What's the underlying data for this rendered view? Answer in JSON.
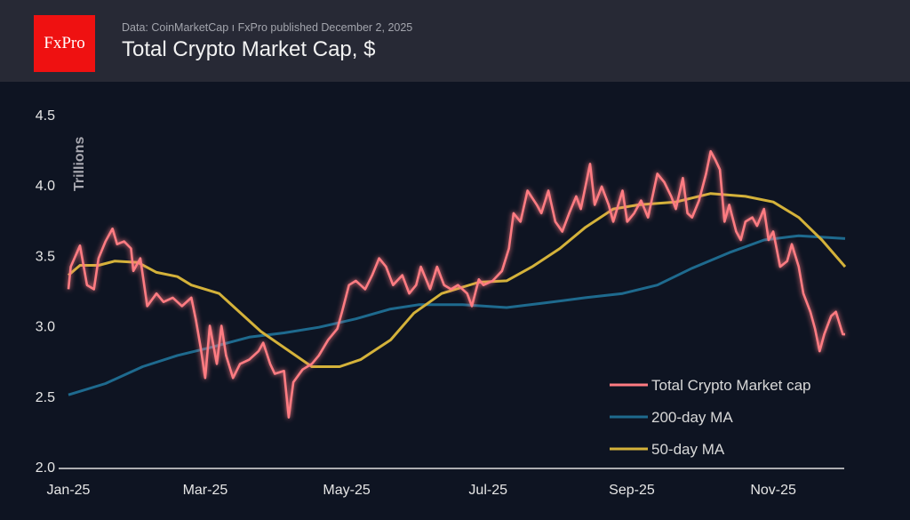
{
  "header": {
    "logo_text": "FxPro",
    "source": "Data: CoinMarketCap  ı  FxPro published December 2, 2025",
    "title": "Total Crypto Market Cap, $"
  },
  "chart_data": {
    "type": "line",
    "title": "Total Crypto Market Cap, $",
    "ylabel": "Trillions",
    "xlabel": "",
    "ylim": [
      2.0,
      4.5
    ],
    "xlim": [
      "2025-01-01",
      "2025-12-02"
    ],
    "yticks": [
      "2.0",
      "2.5",
      "3.0",
      "3.5",
      "4.0",
      "4.5"
    ],
    "xticks": [
      {
        "date": "2025-01-01",
        "label": "Jan-25"
      },
      {
        "date": "2025-03-01",
        "label": "Mar-25"
      },
      {
        "date": "2025-05-01",
        "label": "May-25"
      },
      {
        "date": "2025-07-01",
        "label": "Jul-25"
      },
      {
        "date": "2025-09-01",
        "label": "Sep-25"
      },
      {
        "date": "2025-11-01",
        "label": "Nov-25"
      }
    ],
    "grid": false,
    "legend_position": "bottom-right",
    "series": [
      {
        "name": "Total Crypto Market cap",
        "color": "#ff7b82",
        "points": [
          [
            "2025-01-01",
            3.26
          ],
          [
            "2025-01-02",
            3.42
          ],
          [
            "2025-01-06",
            3.57
          ],
          [
            "2025-01-09",
            3.29
          ],
          [
            "2025-01-12",
            3.26
          ],
          [
            "2025-01-14",
            3.48
          ],
          [
            "2025-01-17",
            3.6
          ],
          [
            "2025-01-20",
            3.69
          ],
          [
            "2025-01-22",
            3.58
          ],
          [
            "2025-01-25",
            3.6
          ],
          [
            "2025-01-28",
            3.55
          ],
          [
            "2025-01-29",
            3.39
          ],
          [
            "2025-02-01",
            3.48
          ],
          [
            "2025-02-04",
            3.14
          ],
          [
            "2025-02-08",
            3.23
          ],
          [
            "2025-02-11",
            3.17
          ],
          [
            "2025-02-15",
            3.2
          ],
          [
            "2025-02-19",
            3.14
          ],
          [
            "2025-02-23",
            3.2
          ],
          [
            "2025-02-25",
            3.04
          ],
          [
            "2025-02-27",
            2.85
          ],
          [
            "2025-03-01",
            2.63
          ],
          [
            "2025-03-03",
            3.0
          ],
          [
            "2025-03-06",
            2.73
          ],
          [
            "2025-03-08",
            3.0
          ],
          [
            "2025-03-10",
            2.79
          ],
          [
            "2025-03-13",
            2.63
          ],
          [
            "2025-03-16",
            2.73
          ],
          [
            "2025-03-20",
            2.76
          ],
          [
            "2025-03-24",
            2.82
          ],
          [
            "2025-03-26",
            2.88
          ],
          [
            "2025-03-29",
            2.73
          ],
          [
            "2025-03-31",
            2.66
          ],
          [
            "2025-04-04",
            2.68
          ],
          [
            "2025-04-06",
            2.35
          ],
          [
            "2025-04-08",
            2.6
          ],
          [
            "2025-04-12",
            2.69
          ],
          [
            "2025-04-16",
            2.73
          ],
          [
            "2025-04-19",
            2.79
          ],
          [
            "2025-04-23",
            2.9
          ],
          [
            "2025-04-27",
            2.98
          ],
          [
            "2025-04-29",
            3.1
          ],
          [
            "2025-05-02",
            3.29
          ],
          [
            "2025-05-05",
            3.32
          ],
          [
            "2025-05-09",
            3.26
          ],
          [
            "2025-05-12",
            3.36
          ],
          [
            "2025-05-15",
            3.48
          ],
          [
            "2025-05-18",
            3.42
          ],
          [
            "2025-05-21",
            3.29
          ],
          [
            "2025-05-25",
            3.36
          ],
          [
            "2025-05-28",
            3.23
          ],
          [
            "2025-05-31",
            3.29
          ],
          [
            "2025-06-02",
            3.42
          ],
          [
            "2025-06-06",
            3.26
          ],
          [
            "2025-06-09",
            3.42
          ],
          [
            "2025-06-12",
            3.29
          ],
          [
            "2025-06-15",
            3.26
          ],
          [
            "2025-06-18",
            3.29
          ],
          [
            "2025-06-22",
            3.23
          ],
          [
            "2025-06-24",
            3.14
          ],
          [
            "2025-06-27",
            3.33
          ],
          [
            "2025-06-29",
            3.29
          ],
          [
            "2025-07-03",
            3.32
          ],
          [
            "2025-07-07",
            3.39
          ],
          [
            "2025-07-10",
            3.55
          ],
          [
            "2025-07-12",
            3.8
          ],
          [
            "2025-07-15",
            3.74
          ],
          [
            "2025-07-18",
            3.96
          ],
          [
            "2025-07-22",
            3.86
          ],
          [
            "2025-07-24",
            3.8
          ],
          [
            "2025-07-27",
            3.96
          ],
          [
            "2025-07-30",
            3.74
          ],
          [
            "2025-08-02",
            3.67
          ],
          [
            "2025-08-05",
            3.8
          ],
          [
            "2025-08-08",
            3.92
          ],
          [
            "2025-08-10",
            3.83
          ],
          [
            "2025-08-14",
            4.15
          ],
          [
            "2025-08-16",
            3.86
          ],
          [
            "2025-08-19",
            3.99
          ],
          [
            "2025-08-22",
            3.86
          ],
          [
            "2025-08-24",
            3.74
          ],
          [
            "2025-08-28",
            3.96
          ],
          [
            "2025-08-30",
            3.74
          ],
          [
            "2025-09-02",
            3.8
          ],
          [
            "2025-09-05",
            3.89
          ],
          [
            "2025-09-08",
            3.77
          ],
          [
            "2025-09-12",
            4.08
          ],
          [
            "2025-09-15",
            4.02
          ],
          [
            "2025-09-18",
            3.92
          ],
          [
            "2025-09-20",
            3.83
          ],
          [
            "2025-09-23",
            4.05
          ],
          [
            "2025-09-25",
            3.8
          ],
          [
            "2025-09-27",
            3.77
          ],
          [
            "2025-09-30",
            3.89
          ],
          [
            "2025-10-03",
            4.08
          ],
          [
            "2025-10-05",
            4.24
          ],
          [
            "2025-10-07",
            4.18
          ],
          [
            "2025-10-09",
            4.11
          ],
          [
            "2025-10-11",
            3.74
          ],
          [
            "2025-10-13",
            3.86
          ],
          [
            "2025-10-16",
            3.67
          ],
          [
            "2025-10-18",
            3.61
          ],
          [
            "2025-10-20",
            3.74
          ],
          [
            "2025-10-23",
            3.77
          ],
          [
            "2025-10-25",
            3.71
          ],
          [
            "2025-10-28",
            3.83
          ],
          [
            "2025-10-30",
            3.61
          ],
          [
            "2025-11-01",
            3.67
          ],
          [
            "2025-11-04",
            3.42
          ],
          [
            "2025-11-07",
            3.46
          ],
          [
            "2025-11-09",
            3.58
          ],
          [
            "2025-11-12",
            3.42
          ],
          [
            "2025-11-14",
            3.23
          ],
          [
            "2025-11-17",
            3.1
          ],
          [
            "2025-11-19",
            2.98
          ],
          [
            "2025-11-21",
            2.82
          ],
          [
            "2025-11-23",
            2.94
          ],
          [
            "2025-11-26",
            3.07
          ],
          [
            "2025-11-28",
            3.1
          ],
          [
            "2025-12-01",
            2.94
          ],
          [
            "2025-12-02",
            2.94
          ]
        ]
      },
      {
        "name": "200-day MA",
        "color": "#1e6a8e",
        "points": [
          [
            "2025-01-01",
            2.51
          ],
          [
            "2025-01-17",
            2.59
          ],
          [
            "2025-02-02",
            2.71
          ],
          [
            "2025-02-17",
            2.79
          ],
          [
            "2025-03-04",
            2.85
          ],
          [
            "2025-03-20",
            2.92
          ],
          [
            "2025-04-04",
            2.95
          ],
          [
            "2025-04-19",
            2.99
          ],
          [
            "2025-05-05",
            3.05
          ],
          [
            "2025-05-20",
            3.12
          ],
          [
            "2025-06-01",
            3.15
          ],
          [
            "2025-06-20",
            3.15
          ],
          [
            "2025-07-09",
            3.13
          ],
          [
            "2025-07-24",
            3.16
          ],
          [
            "2025-08-12",
            3.2
          ],
          [
            "2025-08-28",
            3.23
          ],
          [
            "2025-09-12",
            3.29
          ],
          [
            "2025-09-27",
            3.41
          ],
          [
            "2025-10-13",
            3.52
          ],
          [
            "2025-10-28",
            3.61
          ],
          [
            "2025-11-12",
            3.64
          ],
          [
            "2025-12-02",
            3.62
          ]
        ]
      },
      {
        "name": "50-day MA",
        "color": "#d4b23a",
        "points": [
          [
            "2025-01-01",
            3.36
          ],
          [
            "2025-01-06",
            3.43
          ],
          [
            "2025-01-14",
            3.43
          ],
          [
            "2025-01-21",
            3.46
          ],
          [
            "2025-01-31",
            3.45
          ],
          [
            "2025-02-08",
            3.38
          ],
          [
            "2025-02-17",
            3.35
          ],
          [
            "2025-02-23",
            3.29
          ],
          [
            "2025-03-07",
            3.23
          ],
          [
            "2025-03-25",
            2.96
          ],
          [
            "2025-04-16",
            2.71
          ],
          [
            "2025-04-28",
            2.71
          ],
          [
            "2025-05-07",
            2.76
          ],
          [
            "2025-05-20",
            2.9
          ],
          [
            "2025-05-30",
            3.09
          ],
          [
            "2025-06-11",
            3.23
          ],
          [
            "2025-06-27",
            3.31
          ],
          [
            "2025-07-09",
            3.32
          ],
          [
            "2025-07-20",
            3.42
          ],
          [
            "2025-08-01",
            3.55
          ],
          [
            "2025-08-12",
            3.7
          ],
          [
            "2025-08-24",
            3.83
          ],
          [
            "2025-09-04",
            3.86
          ],
          [
            "2025-09-20",
            3.88
          ],
          [
            "2025-10-05",
            3.94
          ],
          [
            "2025-10-20",
            3.92
          ],
          [
            "2025-11-01",
            3.88
          ],
          [
            "2025-11-12",
            3.77
          ],
          [
            "2025-11-22",
            3.61
          ],
          [
            "2025-12-02",
            3.42
          ]
        ]
      }
    ]
  }
}
